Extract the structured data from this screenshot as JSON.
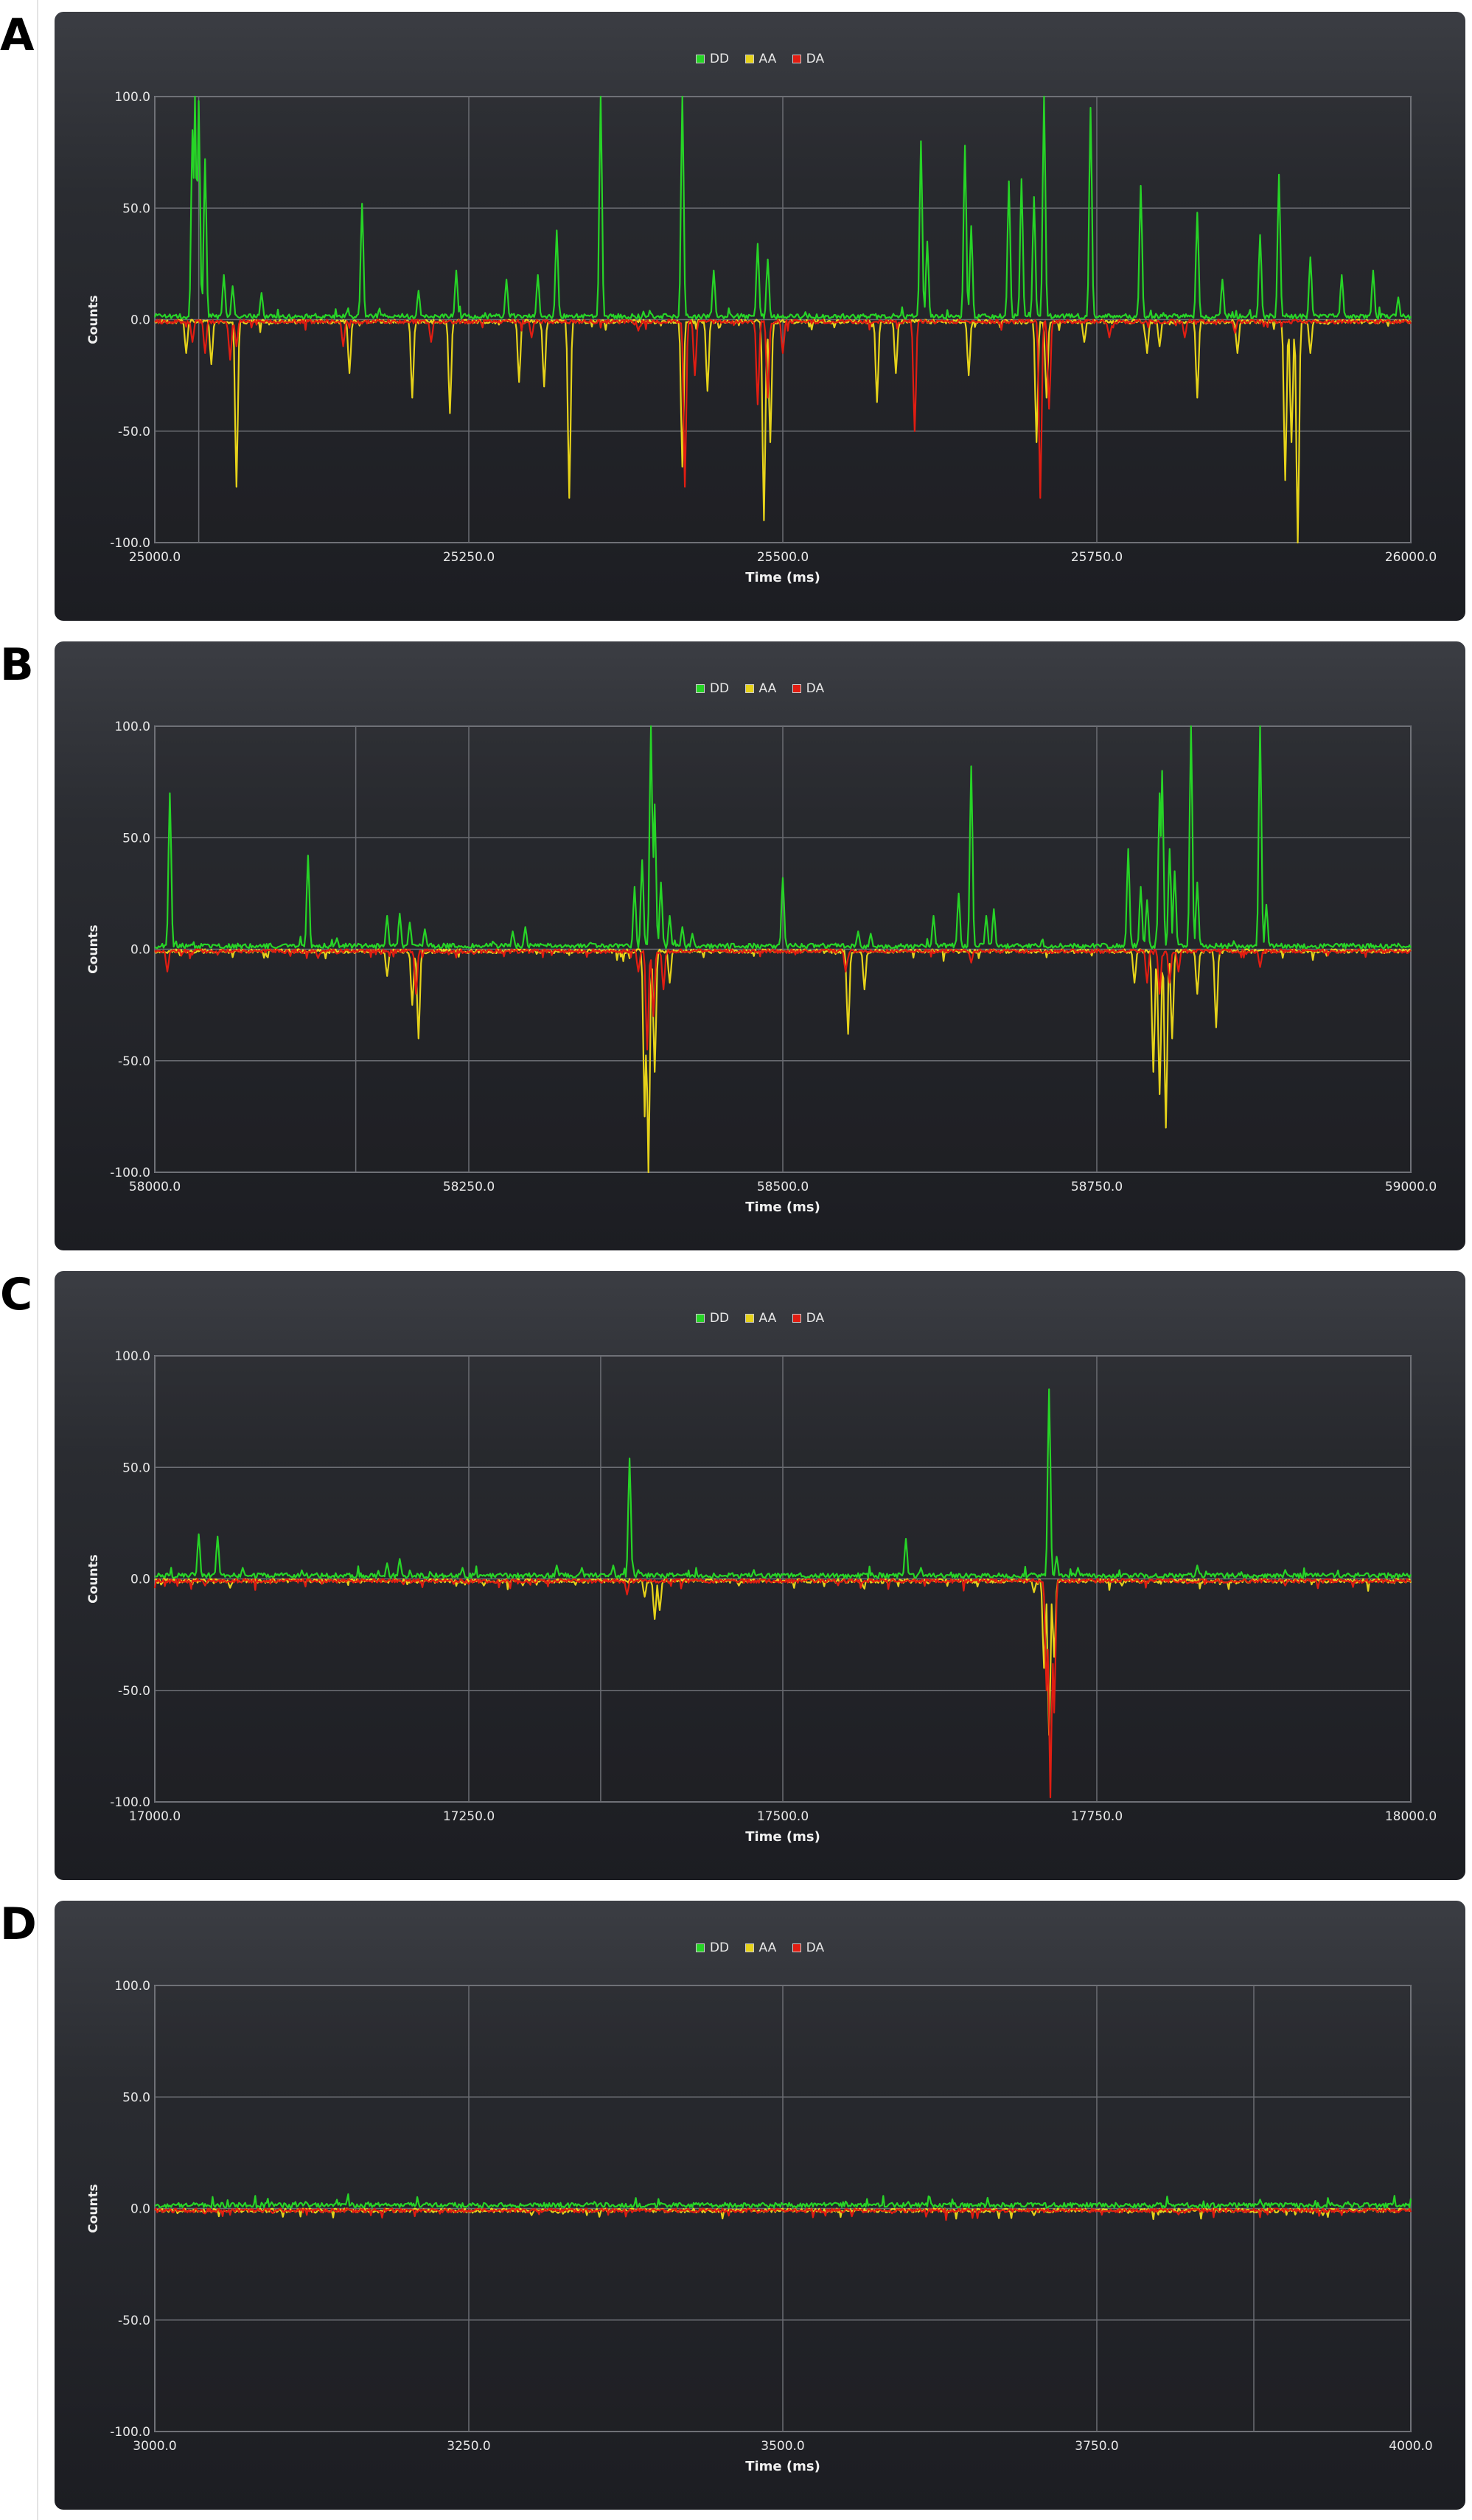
{
  "panels": [
    {
      "letter": "A",
      "chart_data": {
        "type": "line",
        "xlabel": "Time (ms)",
        "ylabel": "Counts",
        "xlim": [
          25000,
          26000
        ],
        "ylim": [
          -100,
          100
        ],
        "xticks": [
          "25000.0",
          "25250.0",
          "25500.0",
          "25750.0",
          "26000.0"
        ],
        "yticks": [
          "100.0",
          "50.0",
          "0.0",
          "-50.0",
          "-100.0"
        ],
        "extra_vgrid": [
          25035
        ],
        "grid": true,
        "legend_position": "top-center",
        "series": [
          {
            "name": "DD",
            "color": "#27d427",
            "peaks": [
              [
                25030,
                85
              ],
              [
                25032,
                100
              ],
              [
                25035,
                98
              ],
              [
                25040,
                72
              ],
              [
                25055,
                20
              ],
              [
                25062,
                15
              ],
              [
                25085,
                12
              ],
              [
                25165,
                52
              ],
              [
                25210,
                13
              ],
              [
                25240,
                22
              ],
              [
                25280,
                18
              ],
              [
                25305,
                20
              ],
              [
                25320,
                40
              ],
              [
                25355,
                100
              ],
              [
                25420,
                100
              ],
              [
                25445,
                22
              ],
              [
                25480,
                34
              ],
              [
                25488,
                27
              ],
              [
                25610,
                80
              ],
              [
                25615,
                35
              ],
              [
                25645,
                78
              ],
              [
                25650,
                42
              ],
              [
                25680,
                62
              ],
              [
                25690,
                63
              ],
              [
                25700,
                55
              ],
              [
                25708,
                100
              ],
              [
                25745,
                95
              ],
              [
                25785,
                60
              ],
              [
                25830,
                48
              ],
              [
                25850,
                18
              ],
              [
                25880,
                38
              ],
              [
                25895,
                65
              ],
              [
                25920,
                28
              ],
              [
                25945,
                20
              ],
              [
                25970,
                22
              ],
              [
                25990,
                10
              ]
            ]
          },
          {
            "name": "AA",
            "color": "#e6d21a",
            "peaks": [
              [
                25025,
                -15
              ],
              [
                25045,
                -20
              ],
              [
                25065,
                -75
              ],
              [
                25155,
                -24
              ],
              [
                25205,
                -35
              ],
              [
                25235,
                -42
              ],
              [
                25290,
                -28
              ],
              [
                25310,
                -30
              ],
              [
                25330,
                -80
              ],
              [
                25420,
                -66
              ],
              [
                25440,
                -32
              ],
              [
                25485,
                -90
              ],
              [
                25490,
                -55
              ],
              [
                25575,
                -37
              ],
              [
                25590,
                -24
              ],
              [
                25648,
                -25
              ],
              [
                25702,
                -55
              ],
              [
                25710,
                -35
              ],
              [
                25740,
                -10
              ],
              [
                25790,
                -15
              ],
              [
                25800,
                -12
              ],
              [
                25830,
                -35
              ],
              [
                25862,
                -15
              ],
              [
                25900,
                -72
              ],
              [
                25905,
                -55
              ],
              [
                25910,
                -100
              ],
              [
                25920,
                -15
              ]
            ]
          },
          {
            "name": "DA",
            "color": "#e11d12",
            "peaks": [
              [
                25030,
                -10
              ],
              [
                25040,
                -15
              ],
              [
                25060,
                -18
              ],
              [
                25065,
                -12
              ],
              [
                25150,
                -12
              ],
              [
                25220,
                -10
              ],
              [
                25300,
                -8
              ],
              [
                25385,
                -5
              ],
              [
                25422,
                -75
              ],
              [
                25430,
                -25
              ],
              [
                25480,
                -38
              ],
              [
                25488,
                -35
              ],
              [
                25500,
                -15
              ],
              [
                25605,
                -50
              ],
              [
                25705,
                -80
              ],
              [
                25712,
                -40
              ],
              [
                25760,
                -8
              ],
              [
                25820,
                -8
              ],
              [
                25860,
                -6
              ]
            ]
          }
        ]
      }
    },
    {
      "letter": "B",
      "chart_data": {
        "type": "line",
        "xlabel": "Time (ms)",
        "ylabel": "Counts",
        "xlim": [
          58000,
          59000
        ],
        "ylim": [
          -100,
          100
        ],
        "xticks": [
          "58000.0",
          "58250.0",
          "58500.0",
          "58750.0",
          "59000.0"
        ],
        "yticks": [
          "100.0",
          "50.0",
          "0.0",
          "-50.0",
          "-100.0"
        ],
        "extra_vgrid": [
          58160
        ],
        "grid": true,
        "legend_position": "top-center",
        "series": [
          {
            "name": "DD",
            "color": "#27d427",
            "peaks": [
              [
                58012,
                70
              ],
              [
                58122,
                42
              ],
              [
                58145,
                5
              ],
              [
                58185,
                15
              ],
              [
                58195,
                16
              ],
              [
                58203,
                12
              ],
              [
                58215,
                9
              ],
              [
                58285,
                8
              ],
              [
                58295,
                10
              ],
              [
                58382,
                28
              ],
              [
                58388,
                40
              ],
              [
                58395,
                100
              ],
              [
                58398,
                65
              ],
              [
                58403,
                30
              ],
              [
                58410,
                15
              ],
              [
                58420,
                10
              ],
              [
                58428,
                7
              ],
              [
                58500,
                32
              ],
              [
                58560,
                8
              ],
              [
                58570,
                7
              ],
              [
                58620,
                15
              ],
              [
                58640,
                25
              ],
              [
                58650,
                82
              ],
              [
                58662,
                15
              ],
              [
                58668,
                18
              ],
              [
                58775,
                45
              ],
              [
                58785,
                28
              ],
              [
                58790,
                22
              ],
              [
                58800,
                70
              ],
              [
                58802,
                80
              ],
              [
                58808,
                45
              ],
              [
                58812,
                35
              ],
              [
                58825,
                100
              ],
              [
                58830,
                30
              ],
              [
                58880,
                100
              ],
              [
                58885,
                20
              ]
            ]
          },
          {
            "name": "AA",
            "color": "#e6d21a",
            "peaks": [
              [
                58185,
                -12
              ],
              [
                58205,
                -25
              ],
              [
                58210,
                -40
              ],
              [
                58390,
                -75
              ],
              [
                58393,
                -100
              ],
              [
                58398,
                -55
              ],
              [
                58410,
                -15
              ],
              [
                58552,
                -38
              ],
              [
                58565,
                -18
              ],
              [
                58780,
                -15
              ],
              [
                58795,
                -55
              ],
              [
                58800,
                -65
              ],
              [
                58805,
                -80
              ],
              [
                58810,
                -40
              ],
              [
                58830,
                -20
              ],
              [
                58845,
                -35
              ]
            ]
          },
          {
            "name": "DA",
            "color": "#e11d12",
            "peaks": [
              [
                58010,
                -10
              ],
              [
                58130,
                -4
              ],
              [
                58208,
                -20
              ],
              [
                58385,
                -10
              ],
              [
                58392,
                -45
              ],
              [
                58397,
                -30
              ],
              [
                58405,
                -18
              ],
              [
                58550,
                -10
              ],
              [
                58650,
                -6
              ],
              [
                58790,
                -15
              ],
              [
                58800,
                -20
              ],
              [
                58808,
                -15
              ],
              [
                58815,
                -10
              ],
              [
                58880,
                -8
              ]
            ]
          }
        ]
      }
    },
    {
      "letter": "C",
      "chart_data": {
        "type": "line",
        "xlabel": "Time (ms)",
        "ylabel": "Counts",
        "xlim": [
          17000,
          18000
        ],
        "ylim": [
          -100,
          100
        ],
        "xticks": [
          "17000.0",
          "17250.0",
          "17500.0",
          "17750.0",
          "18000.0"
        ],
        "yticks": [
          "100.0",
          "50.0",
          "0.0",
          "-50.0",
          "-100.0"
        ],
        "extra_vgrid": [
          17355
        ],
        "grid": true,
        "legend_position": "top-center",
        "series": [
          {
            "name": "DD",
            "color": "#27d427",
            "peaks": [
              [
                17035,
                20
              ],
              [
                17050,
                19
              ],
              [
                17070,
                5
              ],
              [
                17185,
                7
              ],
              [
                17195,
                9
              ],
              [
                17245,
                5
              ],
              [
                17320,
                6
              ],
              [
                17340,
                5
              ],
              [
                17365,
                6
              ],
              [
                17378,
                54
              ],
              [
                17385,
                4
              ],
              [
                17598,
                18
              ],
              [
                17610,
                5
              ],
              [
                17712,
                85
              ],
              [
                17718,
                10
              ],
              [
                17735,
                5
              ],
              [
                17830,
                6
              ],
              [
                17900,
                4
              ]
            ]
          },
          {
            "name": "AA",
            "color": "#e6d21a",
            "peaks": [
              [
                17060,
                -4
              ],
              [
                17262,
                -3
              ],
              [
                17390,
                -8
              ],
              [
                17398,
                -18
              ],
              [
                17402,
                -14
              ],
              [
                17465,
                -3
              ],
              [
                17700,
                -6
              ],
              [
                17708,
                -40
              ],
              [
                17712,
                -70
              ],
              [
                17716,
                -35
              ],
              [
                17770,
                -3
              ]
            ]
          },
          {
            "name": "DA",
            "color": "#e11d12",
            "peaks": [
              [
                17040,
                -3
              ],
              [
                17376,
                -7
              ],
              [
                17710,
                -50
              ],
              [
                17713,
                -98
              ],
              [
                17716,
                -60
              ],
              [
                17900,
                -3
              ]
            ]
          }
        ]
      }
    },
    {
      "letter": "D",
      "chart_data": {
        "type": "line",
        "xlabel": "Time (ms)",
        "ylabel": "Counts",
        "xlim": [
          3000,
          4000
        ],
        "ylim": [
          -100,
          100
        ],
        "xticks": [
          "3000.0",
          "3250.0",
          "3500.0",
          "3750.0",
          "4000.0"
        ],
        "yticks": [
          "100.0",
          "50.0",
          "0.0",
          "-50.0",
          "-100.0"
        ],
        "extra_vgrid": [
          3875
        ],
        "grid": true,
        "legend_position": "top-center",
        "series": [
          {
            "name": "DD",
            "color": "#27d427",
            "peaks": [
              [
                3120,
                3
              ],
              [
                3350,
                3
              ],
              [
                3600,
                3
              ],
              [
                3880,
                4
              ],
              [
                3950,
                3
              ]
            ]
          },
          {
            "name": "AA",
            "color": "#e6d21a",
            "peaks": [
              [
                3300,
                -3
              ],
              [
                3700,
                -3
              ],
              [
                3930,
                -3
              ]
            ]
          },
          {
            "name": "DA",
            "color": "#e11d12",
            "peaks": [
              [
                3480,
                -2
              ],
              [
                3820,
                -2
              ]
            ]
          }
        ]
      }
    }
  ]
}
